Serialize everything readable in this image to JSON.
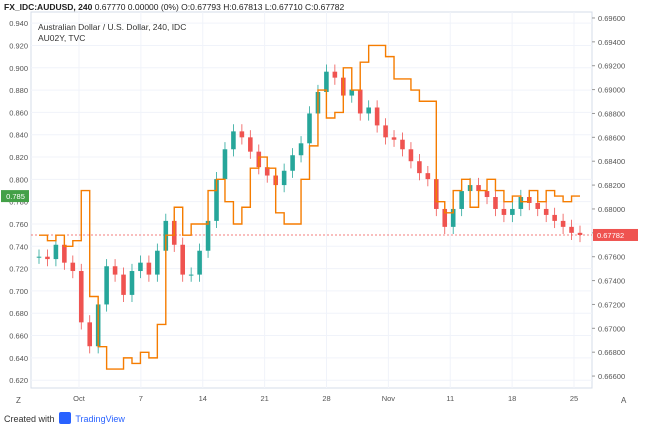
{
  "header": {
    "symbol": "FX_IDC:AUDUSD, 240",
    "ohlc": "0.67770 0.00000 (0%) O:0.67793 H:0.67813 L:0.67710 C:0.67782",
    "pair_name": "Australian Dollar / U.S. Dollar, 240, IDC",
    "overlay_name": "AU02Y, TVC"
  },
  "footer": {
    "created_with": "Created with",
    "brand": "TradingView"
  },
  "corner_labels": {
    "left": "Z",
    "right": "A"
  },
  "colors": {
    "up": "#26a69a",
    "down": "#ef5350",
    "overlay": "#f57c00",
    "grid": "#f0f3fa",
    "axis_text": "#555555"
  },
  "chart_data": {
    "type": "line",
    "title": "Australian Dollar / U.S. Dollar, 240, IDC",
    "left_axis": {
      "ticks": [
        "0.940",
        "0.920",
        "0.900",
        "0.880",
        "0.860",
        "0.840",
        "0.820",
        "0.800",
        "0.780",
        "0.760",
        "0.740",
        "0.720",
        "0.700",
        "0.680",
        "0.660",
        "0.640",
        "0.620"
      ],
      "range": [
        0.613,
        0.95
      ]
    },
    "right_axis": {
      "ticks": [
        "0.69600",
        "0.69400",
        "0.69200",
        "0.69000",
        "0.68800",
        "0.68600",
        "0.68400",
        "0.68200",
        "0.68000",
        "0.67800",
        "0.67600",
        "0.67400",
        "0.67200",
        "0.67000",
        "0.66800",
        "0.66600"
      ],
      "range": [
        0.665,
        0.6965
      ]
    },
    "x_ticks": [
      "Oct",
      "7",
      "14",
      "21",
      "28",
      "Nov",
      "11",
      "18",
      "25"
    ],
    "badges": {
      "left": "0.785",
      "right": "0.67782"
    },
    "current_price": 0.67782,
    "series": [
      {
        "name": "FX_IDC:AUDUSD, 240",
        "axis": "right",
        "x": [
          0,
          1,
          2,
          3,
          4,
          5,
          6,
          7,
          8,
          9,
          10,
          11,
          12,
          13,
          14,
          15,
          16,
          17,
          18,
          19,
          20,
          21,
          22,
          23,
          24,
          25,
          26,
          27,
          28,
          29,
          30,
          31,
          32,
          33,
          34,
          35,
          36,
          37,
          38,
          39,
          40,
          41,
          42,
          43,
          44,
          45,
          46,
          47,
          48,
          49,
          50,
          51,
          52,
          53,
          54,
          55,
          56,
          57,
          58,
          59,
          60,
          61,
          62,
          63,
          64
        ],
        "values": [
          0.676,
          0.6758,
          0.677,
          0.6755,
          0.6748,
          0.6705,
          0.6685,
          0.672,
          0.6752,
          0.6745,
          0.6728,
          0.6748,
          0.6755,
          0.6745,
          0.6765,
          0.679,
          0.677,
          0.6745,
          0.6745,
          0.6765,
          0.679,
          0.6825,
          0.685,
          0.6865,
          0.686,
          0.6848,
          0.6835,
          0.6828,
          0.682,
          0.6832,
          0.6845,
          0.6855,
          0.688,
          0.6898,
          0.6915,
          0.691,
          0.6895,
          0.69,
          0.688,
          0.6885,
          0.687,
          0.686,
          0.6858,
          0.685,
          0.684,
          0.683,
          0.6825,
          0.68,
          0.6785,
          0.68,
          0.6815,
          0.682,
          0.6815,
          0.681,
          0.68,
          0.6795,
          0.68,
          0.681,
          0.6805,
          0.68,
          0.6795,
          0.679,
          0.6785,
          0.678,
          0.67782
        ]
      },
      {
        "name": "AU02Y, TVC",
        "axis": "left",
        "x": [
          0,
          1,
          2,
          3,
          4,
          5,
          6,
          7,
          8,
          9,
          10,
          11,
          12,
          13,
          14,
          15,
          16,
          17,
          18,
          19,
          20,
          21,
          22,
          23,
          24,
          25,
          26,
          27,
          28,
          29,
          30,
          31,
          32,
          33,
          34,
          35,
          36,
          37,
          38,
          39,
          40,
          41,
          42,
          43,
          44,
          45,
          46,
          47,
          48,
          49,
          50,
          51,
          52,
          53,
          54,
          55,
          56,
          57,
          58,
          59,
          60,
          61,
          62,
          63,
          64
        ],
        "values": [
          0.75,
          0.745,
          0.75,
          0.74,
          0.745,
          0.79,
          0.695,
          0.65,
          0.63,
          0.63,
          0.64,
          0.635,
          0.645,
          0.64,
          0.67,
          0.75,
          0.775,
          0.75,
          0.76,
          0.76,
          0.79,
          0.8,
          0.78,
          0.76,
          0.775,
          0.81,
          0.82,
          0.81,
          0.77,
          0.76,
          0.76,
          0.8,
          0.83,
          0.88,
          0.855,
          0.86,
          0.9,
          0.88,
          0.905,
          0.92,
          0.92,
          0.91,
          0.89,
          0.89,
          0.88,
          0.87,
          0.87,
          0.78,
          0.77,
          0.79,
          0.8,
          0.775,
          0.79,
          0.8,
          0.79,
          0.78,
          0.785,
          0.78,
          0.79,
          0.78,
          0.79,
          0.785,
          0.78,
          0.785,
          0.785
        ]
      }
    ]
  }
}
